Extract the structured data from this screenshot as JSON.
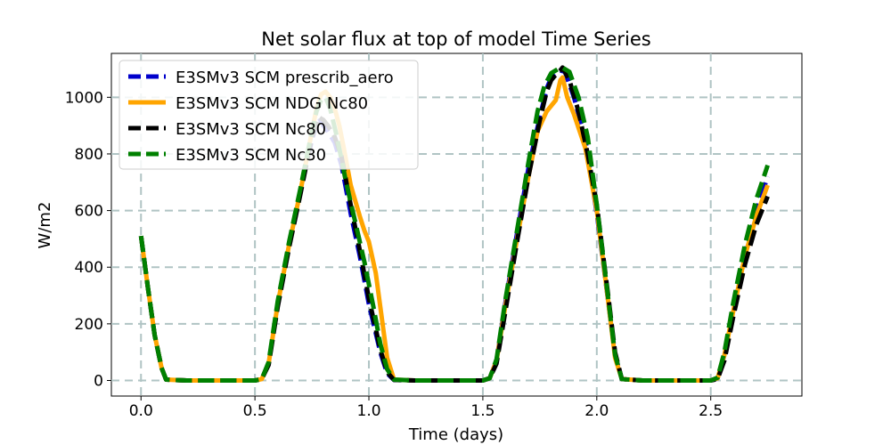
{
  "chart_data": {
    "type": "line",
    "title": "Net solar flux at top of model Time Series",
    "xlabel": "Time (days)",
    "ylabel": "W/m2",
    "xlim": [
      -0.13,
      2.9
    ],
    "ylim": [
      -55,
      1155
    ],
    "xticks": [
      0.0,
      0.5,
      1.0,
      1.5,
      2.0,
      2.5
    ],
    "xtick_labels": [
      "0.0",
      "0.5",
      "1.0",
      "1.5",
      "2.0",
      "2.5"
    ],
    "yticks": [
      0,
      200,
      400,
      600,
      800,
      1000
    ],
    "ytick_labels": [
      "0",
      "200",
      "400",
      "600",
      "800",
      "1000"
    ],
    "grid": true,
    "legend_position": "top-left",
    "series": [
      {
        "name": "E3SMv3 SCM prescrib_aero",
        "color": "#0000cc",
        "style": "dashed",
        "x": [
          0.0,
          0.03,
          0.06,
          0.09,
          0.11,
          0.2,
          0.3,
          0.4,
          0.5,
          0.53,
          0.56,
          0.6,
          0.65,
          0.7,
          0.75,
          0.78,
          0.8,
          0.82,
          0.85,
          0.88,
          0.92,
          0.96,
          1.0,
          1.05,
          1.08,
          1.11,
          1.2,
          1.3,
          1.4,
          1.5,
          1.53,
          1.56,
          1.6,
          1.65,
          1.7,
          1.75,
          1.78,
          1.8,
          1.82,
          1.84,
          1.86,
          1.9,
          1.95,
          2.0,
          2.05,
          2.08,
          2.11,
          2.2,
          2.3,
          2.4,
          2.5,
          2.53,
          2.56,
          2.6,
          2.65,
          2.7,
          2.75
        ],
        "y": [
          510,
          330,
          160,
          45,
          3,
          0,
          0,
          0,
          0,
          5,
          60,
          270,
          480,
          670,
          850,
          930,
          900,
          880,
          840,
          760,
          590,
          440,
          270,
          100,
          25,
          2,
          0,
          0,
          0,
          0,
          8,
          70,
          280,
          520,
          750,
          930,
          1030,
          1070,
          1090,
          1095,
          1090,
          1000,
          850,
          590,
          280,
          90,
          5,
          0,
          0,
          0,
          0,
          8,
          90,
          260,
          450,
          600,
          720
        ]
      },
      {
        "name": "E3SMv3 SCM NDG Nc80",
        "color": "#ffa500",
        "style": "solid",
        "x": [
          0.0,
          0.03,
          0.06,
          0.09,
          0.11,
          0.2,
          0.3,
          0.4,
          0.5,
          0.53,
          0.56,
          0.6,
          0.65,
          0.7,
          0.75,
          0.77,
          0.79,
          0.81,
          0.83,
          0.85,
          0.87,
          0.89,
          0.92,
          0.96,
          0.98,
          1.0,
          1.03,
          1.06,
          1.08,
          1.11,
          1.2,
          1.3,
          1.4,
          1.5,
          1.53,
          1.56,
          1.6,
          1.65,
          1.7,
          1.74,
          1.78,
          1.82,
          1.84,
          1.85,
          1.87,
          1.9,
          1.95,
          2.0,
          2.05,
          2.08,
          2.11,
          2.2,
          2.3,
          2.4,
          2.5,
          2.53,
          2.56,
          2.6,
          2.65,
          2.7,
          2.75
        ],
        "y": [
          510,
          330,
          160,
          45,
          3,
          0,
          0,
          0,
          0,
          5,
          60,
          270,
          480,
          670,
          880,
          960,
          1010,
          1020,
          1000,
          960,
          900,
          820,
          690,
          580,
          530,
          490,
          380,
          200,
          80,
          3,
          0,
          0,
          0,
          0,
          8,
          70,
          270,
          500,
          720,
          880,
          950,
          990,
          1060,
          1070,
          1000,
          940,
          820,
          600,
          280,
          80,
          5,
          0,
          0,
          0,
          0,
          8,
          90,
          250,
          440,
          580,
          690
        ]
      },
      {
        "name": "E3SMv3 SCM Nc80",
        "color": "#000000",
        "style": "dashed",
        "x": [
          0.0,
          0.03,
          0.06,
          0.09,
          0.11,
          0.2,
          0.3,
          0.4,
          0.5,
          0.53,
          0.56,
          0.6,
          0.65,
          0.7,
          0.75,
          0.78,
          0.8,
          0.82,
          0.85,
          0.88,
          0.92,
          0.96,
          1.0,
          1.05,
          1.08,
          1.11,
          1.2,
          1.3,
          1.4,
          1.5,
          1.53,
          1.56,
          1.6,
          1.65,
          1.7,
          1.75,
          1.78,
          1.8,
          1.82,
          1.84,
          1.85,
          1.88,
          1.92,
          1.96,
          2.0,
          2.05,
          2.08,
          2.11,
          2.2,
          2.3,
          2.4,
          2.5,
          2.53,
          2.56,
          2.6,
          2.65,
          2.7,
          2.75
        ],
        "y": [
          510,
          330,
          160,
          45,
          3,
          0,
          0,
          0,
          0,
          5,
          55,
          260,
          470,
          660,
          860,
          930,
          920,
          900,
          860,
          790,
          620,
          460,
          290,
          110,
          30,
          2,
          0,
          0,
          0,
          0,
          8,
          60,
          250,
          490,
          720,
          920,
          1020,
          1060,
          1080,
          1095,
          1105,
          1060,
          950,
          800,
          620,
          300,
          100,
          5,
          0,
          0,
          0,
          0,
          5,
          70,
          230,
          410,
          550,
          650
        ]
      },
      {
        "name": "E3SMv3 SCM Nc30",
        "color": "#008000",
        "style": "dashed",
        "x": [
          0.0,
          0.03,
          0.06,
          0.09,
          0.11,
          0.2,
          0.3,
          0.4,
          0.5,
          0.53,
          0.56,
          0.6,
          0.65,
          0.7,
          0.75,
          0.77,
          0.79,
          0.81,
          0.83,
          0.86,
          0.9,
          0.94,
          0.98,
          1.02,
          1.05,
          1.08,
          1.11,
          1.2,
          1.3,
          1.4,
          1.5,
          1.53,
          1.56,
          1.6,
          1.65,
          1.7,
          1.74,
          1.77,
          1.8,
          1.83,
          1.85,
          1.88,
          1.92,
          1.96,
          2.0,
          2.05,
          2.08,
          2.11,
          2.2,
          2.3,
          2.4,
          2.5,
          2.53,
          2.56,
          2.6,
          2.65,
          2.7,
          2.75
        ],
        "y": [
          510,
          330,
          160,
          45,
          3,
          0,
          0,
          0,
          0,
          5,
          65,
          280,
          490,
          680,
          880,
          950,
          990,
          1000,
          960,
          860,
          700,
          560,
          420,
          260,
          130,
          40,
          3,
          0,
          0,
          0,
          0,
          8,
          75,
          290,
          530,
          770,
          950,
          1040,
          1085,
          1100,
          1105,
          1090,
          1000,
          860,
          620,
          290,
          90,
          5,
          0,
          0,
          0,
          0,
          10,
          100,
          280,
          480,
          640,
          760
        ]
      }
    ]
  }
}
